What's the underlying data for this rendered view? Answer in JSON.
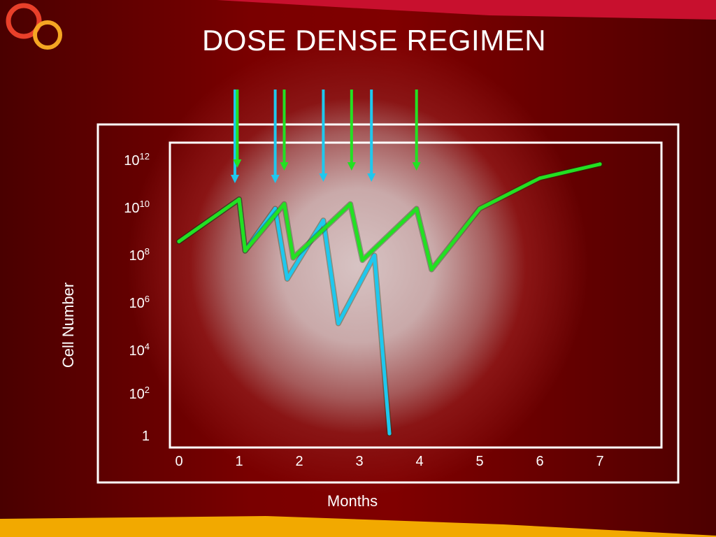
{
  "slide": {
    "title": "DOSE DENSE REGIMEN",
    "colors": {
      "background": "#7a0000",
      "top_band": "#c8102e",
      "bottom_band": "#f2a900",
      "logo_red": "#e8402a",
      "logo_orange": "#f5a623"
    }
  },
  "chart_data": {
    "type": "line",
    "title": "",
    "xlabel": "Months",
    "ylabel": "Cell Number",
    "x_ticks": [
      "0",
      "1",
      "2",
      "3",
      "4",
      "5",
      "6",
      "7"
    ],
    "y_ticks": [
      {
        "base": "10",
        "exp": "12"
      },
      {
        "base": "10",
        "exp": "10"
      },
      {
        "base": "10",
        "exp": "8"
      },
      {
        "base": "10",
        "exp": "6"
      },
      {
        "base": "10",
        "exp": "4"
      },
      {
        "base": "10",
        "exp": "2"
      },
      {
        "base": "1",
        "exp": ""
      }
    ],
    "xlim": [
      0,
      7
    ],
    "y_scale": "log10",
    "ylim_exponent": [
      0,
      12
    ],
    "grid": false,
    "legend": "none",
    "series": [
      {
        "color": "#22e122",
        "points": [
          [
            0,
            8.2
          ],
          [
            1,
            10
          ],
          [
            1.1,
            7.8
          ],
          [
            1.75,
            9.8
          ],
          [
            1.9,
            7.5
          ],
          [
            2.85,
            9.8
          ],
          [
            3.05,
            7.4
          ],
          [
            3.95,
            9.6
          ],
          [
            4.2,
            7.0
          ],
          [
            5,
            9.6
          ],
          [
            6,
            10.9
          ],
          [
            7,
            11.5
          ]
        ]
      },
      {
        "color": "#1ec8ee",
        "points": [
          [
            0,
            8.2
          ],
          [
            1,
            10
          ],
          [
            1.1,
            7.8
          ],
          [
            1.6,
            9.6
          ],
          [
            1.8,
            6.6
          ],
          [
            2.4,
            9.1
          ],
          [
            2.65,
            4.7
          ],
          [
            3.25,
            7.6
          ],
          [
            3.5,
            0
          ]
        ]
      }
    ],
    "dose_arrows": [
      {
        "month": 0.93,
        "color": "#1ec8ee"
      },
      {
        "month": 0.97,
        "color": "#22e122"
      },
      {
        "month": 1.6,
        "color": "#1ec8ee"
      },
      {
        "month": 1.75,
        "color": "#22e122"
      },
      {
        "month": 2.4,
        "color": "#1ec8ee"
      },
      {
        "month": 2.87,
        "color": "#22e122"
      },
      {
        "month": 3.2,
        "color": "#1ec8ee"
      },
      {
        "month": 3.95,
        "color": "#22e122"
      }
    ]
  }
}
